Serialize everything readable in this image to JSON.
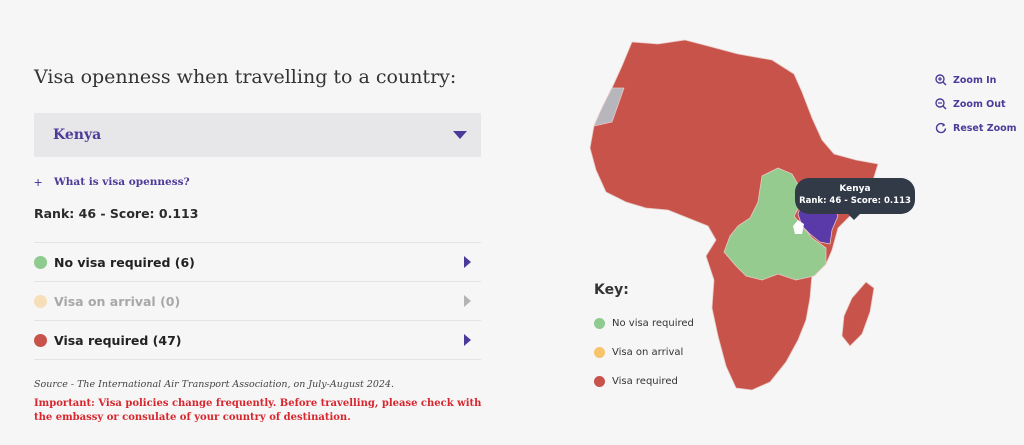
{
  "panel": {
    "title": "Visa openness when travelling to a country:",
    "selected_country": "Kenya",
    "help_plus": "+",
    "help_link": "What is visa openness?",
    "rank_text": "Rank: 46 - Score: 0.113",
    "rows": [
      {
        "label": "No visa required (6)",
        "color": "#8fca8f"
      },
      {
        "label": "Visa on arrival (0)",
        "color": "#f7c46a"
      },
      {
        "label": "Visa required (47)",
        "color": "#c8534a"
      }
    ],
    "source": "Source - The International Air Transport Association, on July-August 2024.",
    "important": "Important: Visa policies change frequently. Before travelling, please check with the embassy or consulate of your country of destination."
  },
  "tooltip": {
    "country": "Kenya",
    "rank": "Rank: 46 - Score: 0.113"
  },
  "key": {
    "title": "Key:",
    "items": [
      {
        "label": "No visa required",
        "color": "#8fca8f"
      },
      {
        "label": "Visa on arrival",
        "color": "#f7c46a"
      },
      {
        "label": "Visa required",
        "color": "#c8534a"
      }
    ]
  },
  "zoom": {
    "zoom_in": "Zoom In",
    "zoom_out": "Zoom Out",
    "reset": "Reset Zoom"
  },
  "map_colors": {
    "visa_required": "#c8534a",
    "no_visa_required": "#95cb8f",
    "selected": "#5a3aa8",
    "no_data": "#b6b6bc",
    "border": "#e8c8c4"
  }
}
